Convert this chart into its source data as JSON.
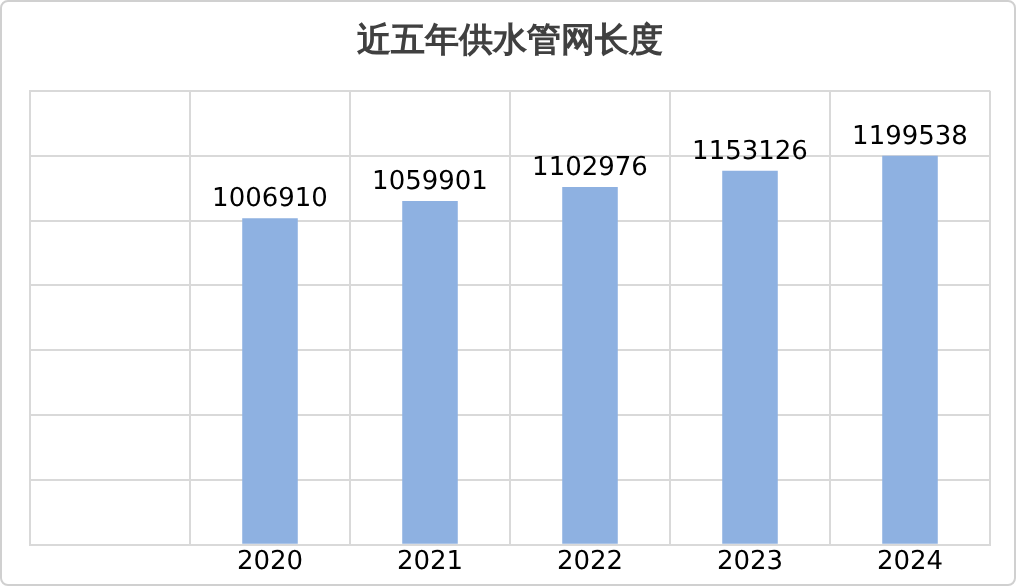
{
  "chart_data": {
    "type": "bar",
    "title": "近五年供水管网长度",
    "categories": [
      null,
      "2020",
      "2021",
      "2022",
      "2023",
      "2024"
    ],
    "series": [
      {
        "color": "#8eb1e1",
        "values": [
          null,
          1006910,
          1059901,
          1102976,
          1153126,
          1199538
        ]
      }
    ],
    "ylim": [
      0,
      1400000
    ],
    "yticks": [
      {
        "value": 0,
        "label": null
      },
      {
        "value": 200000,
        "label": null
      },
      {
        "value": 400000,
        "label": null
      },
      {
        "value": 600000,
        "label": null
      },
      {
        "value": 800000,
        "label": null
      },
      {
        "value": 1000000,
        "label": null
      },
      {
        "value": 1200000,
        "label": null
      },
      {
        "value": 1400000,
        "label": null
      }
    ],
    "tick_labels": "x",
    "grid": true,
    "data_labels": true
  }
}
